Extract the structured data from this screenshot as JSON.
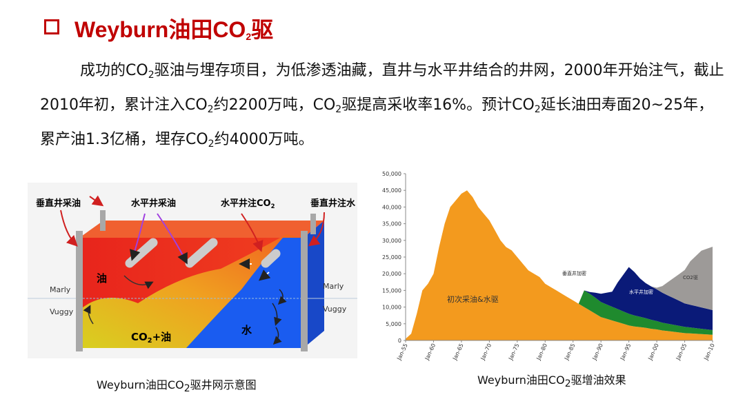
{
  "header": {
    "title": [
      "Weyburn油田CO",
      "2",
      "驱"
    ]
  },
  "paragraph": [
    "成功的CO",
    "2",
    "驱油与埋存项目，为低渗透油藏，直井与水平井结合的井网，2000年开始注气，截止2010年初，累计注入CO",
    "2",
    "约2200万吨，CO",
    "2",
    "驱提高采收率16%。预计CO",
    "2",
    "延长油田寿面20~25年，累产油1.3亿桶，埋存CO",
    "2",
    "约4000万吨。"
  ],
  "diagram": {
    "labels": {
      "vertical_producer": "垂直井采油",
      "horizontal_producer": "水平井采油",
      "horizontal_injector": [
        "水平井注CO",
        "2"
      ],
      "vertical_injector": "垂直井注水",
      "oil": "油",
      "co2_oil": [
        "CO",
        "2",
        "+油"
      ],
      "water": "水",
      "marly_left": "Marly",
      "vuggy_left": "Vuggy",
      "marly_right": "Marly",
      "vuggy_right": "Vuggy"
    },
    "caption": [
      "Weyburn油田CO",
      "2",
      "驱井网示意图"
    ]
  },
  "chart_caption": [
    "Weyburn油田CO",
    "2",
    "驱增油效果"
  ],
  "chart_data": {
    "type": "stacked-area",
    "x": [
      1955,
      1956,
      1957,
      1958,
      1959,
      1960,
      1961,
      1962,
      1963,
      1964,
      1965,
      1966,
      1967,
      1968,
      1969,
      1970,
      1971,
      1972,
      1973,
      1974,
      1975,
      1976,
      1977,
      1978,
      1979,
      1980,
      1981,
      1982,
      1983,
      1984,
      1985,
      1986,
      1987,
      1988,
      1989,
      1990,
      1991,
      1992,
      1993,
      1994,
      1995,
      1996,
      1997,
      1998,
      1999,
      2000,
      2001,
      2002,
      2003,
      2004,
      2005,
      2006,
      2007,
      2008,
      2009,
      2010
    ],
    "series": [
      {
        "name": "初次采油&水驱",
        "color": "#f39a1e",
        "values": [
          500,
          2000,
          8000,
          15000,
          17000,
          20000,
          28000,
          35000,
          40000,
          42000,
          44000,
          45000,
          43000,
          40000,
          38000,
          36000,
          33000,
          30000,
          28000,
          27000,
          25000,
          23000,
          21000,
          20000,
          19000,
          17000,
          16000,
          15000,
          14000,
          13000,
          12000,
          11000,
          10000,
          9000,
          8000,
          7000,
          6500,
          6000,
          5500,
          5000,
          4500,
          4200,
          4000,
          3800,
          3500,
          3300,
          3000,
          2800,
          2600,
          2400,
          2200,
          2100,
          2000,
          1900,
          1800,
          1700
        ]
      },
      {
        "name": "垂直井加密",
        "color": "#1f8a2e",
        "values": [
          0,
          0,
          0,
          0,
          0,
          0,
          0,
          0,
          0,
          0,
          0,
          0,
          0,
          0,
          0,
          0,
          0,
          0,
          0,
          0,
          0,
          0,
          0,
          0,
          0,
          0,
          0,
          0,
          0,
          0,
          0,
          0,
          5000,
          5000,
          4800,
          4500,
          4300,
          4100,
          3900,
          3700,
          3500,
          3300,
          3100,
          2900,
          2700,
          2500,
          2300,
          2200,
          2100,
          2000,
          1900,
          1800,
          1700,
          1600,
          1500,
          1400
        ]
      },
      {
        "name": "水平井加密",
        "color": "#0a1a78",
        "values": [
          0,
          0,
          0,
          0,
          0,
          0,
          0,
          0,
          0,
          0,
          0,
          0,
          0,
          0,
          0,
          0,
          0,
          0,
          0,
          0,
          0,
          0,
          0,
          0,
          0,
          0,
          0,
          0,
          0,
          0,
          0,
          0,
          0,
          500,
          1500,
          2500,
          3500,
          4500,
          8000,
          11000,
          14000,
          13000,
          11500,
          10500,
          10000,
          9500,
          9000,
          8500,
          8000,
          7500,
          7000,
          6800,
          6600,
          6400,
          6200,
          6000
        ]
      },
      {
        "name": "CO2驱",
        "color": "#9d9a98",
        "values": [
          0,
          0,
          0,
          0,
          0,
          0,
          0,
          0,
          0,
          0,
          0,
          0,
          0,
          0,
          0,
          0,
          0,
          0,
          0,
          0,
          0,
          0,
          0,
          0,
          0,
          0,
          0,
          0,
          0,
          0,
          0,
          0,
          0,
          0,
          0,
          0,
          0,
          0,
          0,
          0,
          0,
          0,
          0,
          0,
          0,
          500,
          2000,
          4000,
          6000,
          8000,
          10000,
          13000,
          15000,
          17000,
          18000,
          19000
        ]
      }
    ],
    "xlim": [
      1955,
      2010
    ],
    "xticks": [
      {
        "value": 1955,
        "label": "Jan-55"
      },
      {
        "value": 1960,
        "label": "Jan-60"
      },
      {
        "value": 1965,
        "label": "Jan-65"
      },
      {
        "value": 1970,
        "label": "Jan-70"
      },
      {
        "value": 1975,
        "label": "Jan-75"
      },
      {
        "value": 1980,
        "label": "Jan-80"
      },
      {
        "value": 1985,
        "label": "Jan-85"
      },
      {
        "value": 1990,
        "label": "Jan-90"
      },
      {
        "value": 1995,
        "label": "Jan-95"
      },
      {
        "value": 2000,
        "label": "Jan-00"
      },
      {
        "value": 2005,
        "label": "Jan-05"
      },
      {
        "value": 2010,
        "label": "Jan-10"
      }
    ],
    "ylim": [
      0,
      50000
    ],
    "yticks": [
      0,
      {
        "value": 5000,
        "label": "5,000"
      },
      {
        "value": 10000,
        "label": "10,000"
      },
      {
        "value": 15000,
        "label": "15,000"
      },
      {
        "value": 20000,
        "label": "20,000"
      },
      {
        "value": 25000,
        "label": "25,000"
      },
      {
        "value": 30000,
        "label": "30,000"
      },
      {
        "value": 35000,
        "label": "35,000"
      },
      {
        "value": 40000,
        "label": "40,000"
      },
      {
        "value": 45000,
        "label": "45,000"
      },
      {
        "value": 50000,
        "label": "50,000"
      }
    ],
    "grid": false
  }
}
